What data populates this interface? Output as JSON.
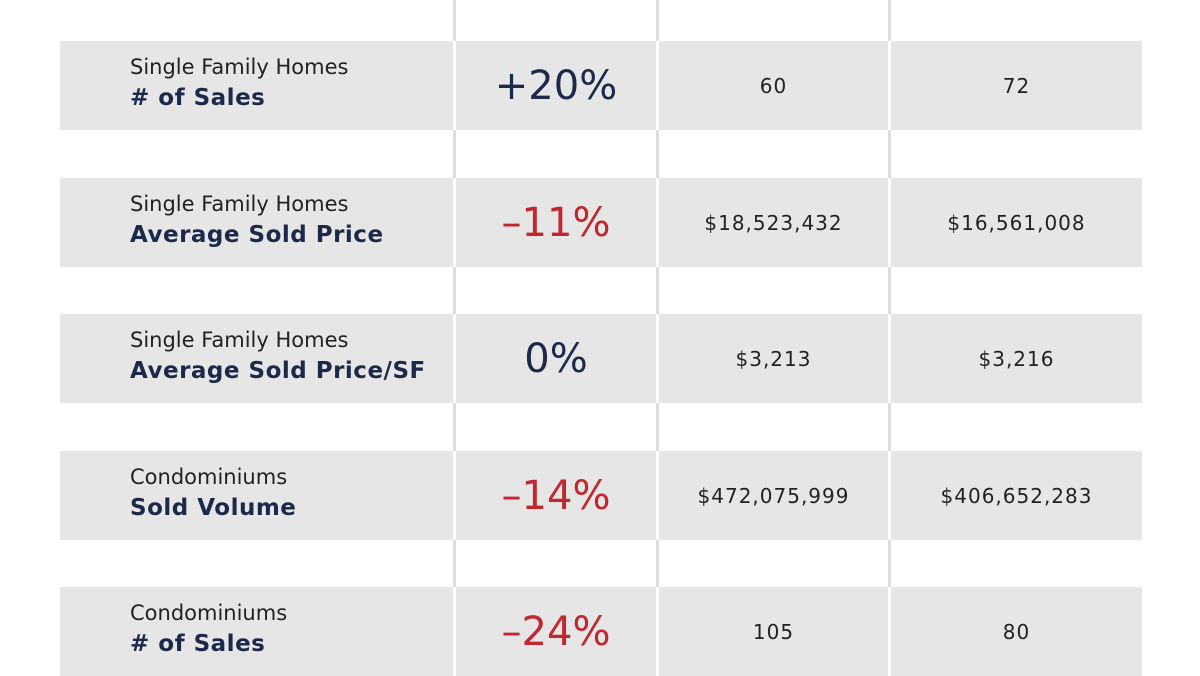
{
  "table": {
    "rows": [
      {
        "category": "Single Family Homes",
        "metric": "# of Sales",
        "change": "+20%",
        "change_color": "#1b2a4a",
        "value_1": "60",
        "value_2": "72"
      },
      {
        "category": "Single Family Homes",
        "metric": "Average Sold Price",
        "change": "–11%",
        "change_color": "#c1272d",
        "value_1": "$18,523,432",
        "value_2": "$16,561,008"
      },
      {
        "category": "Single Family Homes",
        "metric": "Average Sold Price/SF",
        "change": "0%",
        "change_color": "#1b2a4a",
        "value_1": "$3,213",
        "value_2": "$3,216"
      },
      {
        "category": "Condominiums",
        "metric": "Sold Volume",
        "change": "–14%",
        "change_color": "#c1272d",
        "value_1": "$472,075,999",
        "value_2": "$406,652,283"
      },
      {
        "category": "Condominiums",
        "metric": "# of Sales",
        "change": "–24%",
        "change_color": "#c1272d",
        "value_1": "105",
        "value_2": "80"
      }
    ]
  }
}
